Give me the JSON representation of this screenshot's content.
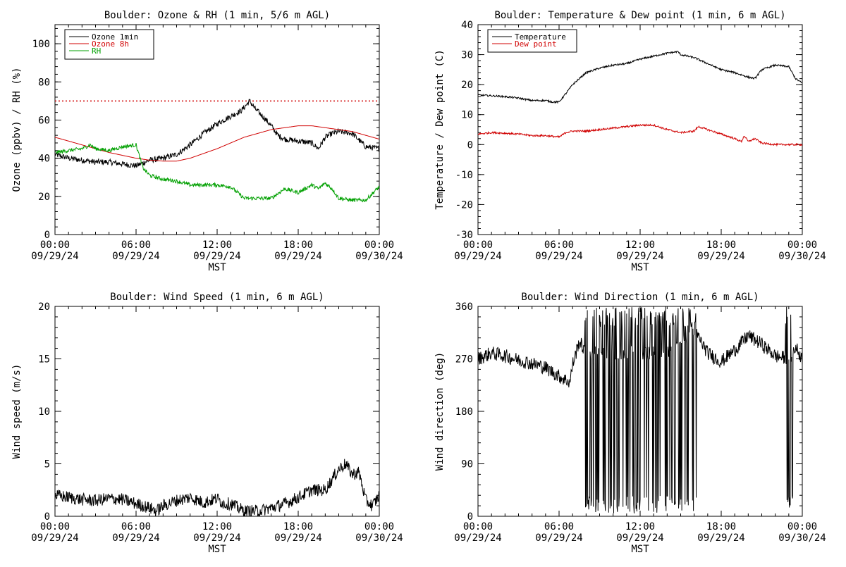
{
  "chart_data": [
    {
      "type": "line",
      "title": "Boulder: Ozone & RH (1 min, 5/6 m AGL)",
      "xlabel": "MST",
      "ylabel": "Ozone (ppbv) / RH (%)",
      "xlim": [
        0,
        24
      ],
      "ylim": [
        0,
        110
      ],
      "x_ticks": [
        {
          "v": 0,
          "l1": "00:00",
          "l2": "09/29/24"
        },
        {
          "v": 6,
          "l1": "06:00",
          "l2": "09/29/24"
        },
        {
          "v": 12,
          "l1": "12:00",
          "l2": "09/29/24"
        },
        {
          "v": 18,
          "l1": "18:00",
          "l2": "09/29/24"
        },
        {
          "v": 24,
          "l1": "00:00",
          "l2": "09/30/24"
        }
      ],
      "y_ticks": [
        0,
        20,
        40,
        60,
        80,
        100
      ],
      "legend": "top-left",
      "ref_line": {
        "y": 70,
        "color": "#d00000",
        "style": "dotted"
      },
      "series": [
        {
          "name": "Ozone 1min",
          "color": "#000000",
          "noise": 1.5,
          "x": [
            0,
            1,
            2,
            3,
            4,
            5,
            6,
            7,
            8,
            9,
            10,
            11,
            12,
            13,
            13.8,
            14.4,
            14.8,
            15.5,
            16,
            16.5,
            17,
            18,
            19,
            19.5,
            20,
            20.5,
            21,
            22,
            23,
            24
          ],
          "y": [
            42,
            40,
            39,
            38,
            38,
            37,
            36,
            39,
            40,
            42,
            47,
            53,
            58,
            62,
            65,
            70,
            66,
            61,
            57,
            52,
            50,
            49,
            48,
            45,
            51,
            53,
            54,
            53,
            46,
            45
          ]
        },
        {
          "name": "Ozone 8h",
          "color": "#d00000",
          "noise": 0,
          "x": [
            0,
            2,
            4,
            6,
            7,
            8,
            9,
            10,
            12,
            14,
            16,
            18,
            19,
            20,
            22,
            24
          ],
          "y": [
            51,
            47,
            43,
            40,
            39,
            38.5,
            38.5,
            40,
            45,
            51,
            55,
            57,
            57,
            56,
            54,
            50
          ]
        },
        {
          "name": "RH",
          "color": "#00a000",
          "noise": 1,
          "x": [
            0,
            1,
            2,
            2.6,
            3,
            4,
            5,
            6,
            6.5,
            7,
            8,
            9,
            10,
            11,
            12,
            13,
            13.5,
            14,
            15,
            16,
            17,
            18,
            19,
            19.5,
            20,
            20.5,
            21,
            22,
            23,
            23.7,
            24
          ],
          "y": [
            43,
            44,
            45,
            47,
            45,
            44,
            46,
            47,
            35,
            31,
            29,
            28,
            26,
            26,
            26,
            25,
            22,
            19,
            19,
            19,
            24,
            22,
            26,
            24,
            27,
            24,
            19,
            18,
            18,
            23,
            25
          ]
        }
      ]
    },
    {
      "type": "line",
      "title": "Boulder: Temperature & Dew point (1 min, 6 m AGL)",
      "xlabel": "MST",
      "ylabel": "Temperature / Dew point (C)",
      "xlim": [
        0,
        24
      ],
      "ylim": [
        -30,
        40
      ],
      "x_ticks": [
        {
          "v": 0,
          "l1": "00:00",
          "l2": "09/29/24"
        },
        {
          "v": 6,
          "l1": "06:00",
          "l2": "09/29/24"
        },
        {
          "v": 12,
          "l1": "12:00",
          "l2": "09/29/24"
        },
        {
          "v": 18,
          "l1": "18:00",
          "l2": "09/29/24"
        },
        {
          "v": 24,
          "l1": "00:00",
          "l2": "09/30/24"
        }
      ],
      "y_ticks": [
        -30,
        -20,
        -10,
        0,
        10,
        20,
        30,
        40
      ],
      "legend": "top-left",
      "series": [
        {
          "name": "Temperature",
          "color": "#000000",
          "noise": 0.3,
          "x": [
            0,
            1,
            2,
            3,
            4,
            5,
            5.5,
            6,
            6.5,
            7,
            8,
            9,
            10,
            11,
            12,
            13,
            14,
            14.8,
            15,
            16,
            17,
            18,
            19,
            20,
            20.5,
            21,
            22,
            23,
            23.5,
            24
          ],
          "y": [
            16.5,
            16.3,
            16,
            15.5,
            14.7,
            14.7,
            14.2,
            14.2,
            17,
            20,
            24,
            25.5,
            26.5,
            27,
            28.5,
            29.5,
            30.5,
            31,
            30,
            29,
            27,
            25,
            24,
            22.5,
            22,
            25,
            26.5,
            26,
            22,
            20.5
          ]
        },
        {
          "name": "Dew point",
          "color": "#d00000",
          "noise": 0.3,
          "x": [
            0,
            1,
            2,
            3,
            4,
            5,
            6,
            6.5,
            7,
            8,
            9,
            10,
            11,
            12,
            13,
            14,
            15,
            16,
            16.3,
            17,
            18,
            19,
            19.5,
            19.7,
            20,
            20.5,
            21,
            22,
            23,
            24
          ],
          "y": [
            3.5,
            4,
            3.8,
            3.5,
            3,
            3,
            2.5,
            4,
            4.5,
            4.5,
            5,
            5.5,
            6,
            6.5,
            6.5,
            5,
            4,
            4.5,
            6,
            5,
            3.5,
            2,
            1,
            3,
            1,
            2,
            0.5,
            0,
            0,
            0
          ]
        }
      ]
    },
    {
      "type": "line",
      "title": "Boulder: Wind Speed (1 min, 6 m AGL)",
      "xlabel": "MST",
      "ylabel": "Wind speed (m/s)",
      "xlim": [
        0,
        24
      ],
      "ylim": [
        0,
        20
      ],
      "x_ticks": [
        {
          "v": 0,
          "l1": "00:00",
          "l2": "09/29/24"
        },
        {
          "v": 6,
          "l1": "06:00",
          "l2": "09/29/24"
        },
        {
          "v": 12,
          "l1": "12:00",
          "l2": "09/29/24"
        },
        {
          "v": 18,
          "l1": "18:00",
          "l2": "09/29/24"
        },
        {
          "v": 24,
          "l1": "00:00",
          "l2": "09/30/24"
        }
      ],
      "y_ticks": [
        0,
        5,
        10,
        15,
        20
      ],
      "series": [
        {
          "name": "",
          "color": "#000000",
          "noise": 0.6,
          "min": 0,
          "x": [
            0,
            1,
            2,
            3,
            4,
            5,
            6,
            7,
            7.5,
            8,
            9,
            10,
            11,
            12,
            12.5,
            13,
            14,
            15,
            16,
            17,
            18,
            19,
            20,
            20.5,
            21,
            21.5,
            22,
            22.5,
            23,
            23.5,
            24
          ],
          "y": [
            2,
            1.8,
            1.6,
            1.5,
            1.7,
            1.6,
            1.2,
            0.8,
            0.5,
            1,
            1.5,
            1.8,
            1.3,
            1.7,
            1.2,
            1.2,
            0.5,
            0.5,
            0.8,
            1.2,
            1.8,
            2.5,
            2.5,
            3.5,
            4.5,
            5,
            4,
            4.2,
            1.5,
            1,
            2
          ]
        }
      ]
    },
    {
      "type": "line",
      "title": "Boulder: Wind Direction (1 min, 6 m AGL)",
      "xlabel": "MST",
      "ylabel": "Wind direction (deg)",
      "xlim": [
        0,
        24
      ],
      "ylim": [
        0,
        360
      ],
      "x_ticks": [
        {
          "v": 0,
          "l1": "00:00",
          "l2": "09/29/24"
        },
        {
          "v": 6,
          "l1": "06:00",
          "l2": "09/29/24"
        },
        {
          "v": 12,
          "l1": "12:00",
          "l2": "09/29/24"
        },
        {
          "v": 18,
          "l1": "18:00",
          "l2": "09/29/24"
        },
        {
          "v": 24,
          "l1": "00:00",
          "l2": "09/30/24"
        }
      ],
      "y_ticks": [
        0,
        90,
        180,
        270,
        360
      ],
      "series": [
        {
          "name": "",
          "color": "#000000",
          "noise": 12,
          "min": 0,
          "max": 360,
          "x": [
            0,
            1,
            2,
            3,
            4,
            5,
            6,
            6.8,
            7,
            7.5,
            8,
            9,
            10,
            11,
            12,
            13,
            14,
            15,
            16,
            17,
            18,
            19,
            20,
            21,
            22,
            23,
            23.5,
            24
          ],
          "y": [
            270,
            280,
            275,
            268,
            262,
            255,
            240,
            230,
            260,
            300,
            280,
            280,
            280,
            280,
            280,
            280,
            280,
            300,
            320,
            280,
            265,
            285,
            310,
            295,
            275,
            270,
            290,
            270
          ],
          "wild_ranges": [
            [
              7.9,
              8.4
            ],
            [
              8.4,
              16.2
            ],
            [
              22.7,
              23.3
            ]
          ]
        }
      ]
    }
  ]
}
